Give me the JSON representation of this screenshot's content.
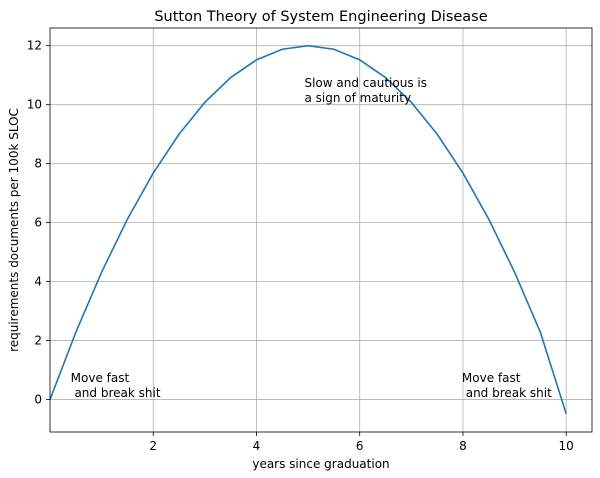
{
  "chart_data": {
    "type": "line",
    "title": "Sutton Theory of System Engineering Disease",
    "xlabel": "years since graduation",
    "ylabel": "requirements documents per 100k SLOC",
    "xlim": [
      0,
      10.5
    ],
    "ylim": [
      -1.1,
      12.6
    ],
    "xticks": [
      2,
      4,
      6,
      8,
      10
    ],
    "yticks": [
      0,
      2,
      4,
      6,
      8,
      10,
      12
    ],
    "grid": true,
    "series": [
      {
        "color": "#1f77b4",
        "x": [
          0,
          0.5,
          1,
          1.5,
          2,
          2.5,
          3,
          3.5,
          4,
          4.5,
          5,
          5.5,
          6,
          6.5,
          7,
          7.5,
          8,
          8.5,
          9,
          9.5,
          10
        ],
        "y": [
          0.0,
          2.28,
          4.32,
          6.12,
          7.68,
          9.0,
          10.08,
          10.92,
          11.52,
          11.88,
          12.0,
          11.88,
          11.52,
          10.92,
          10.08,
          9.0,
          7.68,
          6.12,
          4.32,
          2.28,
          -0.48
        ]
      }
    ],
    "annotations": [
      {
        "lines": [
          "Move fast",
          " and break shit"
        ],
        "x": 0.4,
        "y": 0.6
      },
      {
        "lines": [
          "Slow and cautious is",
          "a sign of maturity"
        ],
        "x": 4.93,
        "y": 10.6
      },
      {
        "lines": [
          "Move fast",
          " and break shit"
        ],
        "x": 7.98,
        "y": 0.6
      }
    ]
  }
}
